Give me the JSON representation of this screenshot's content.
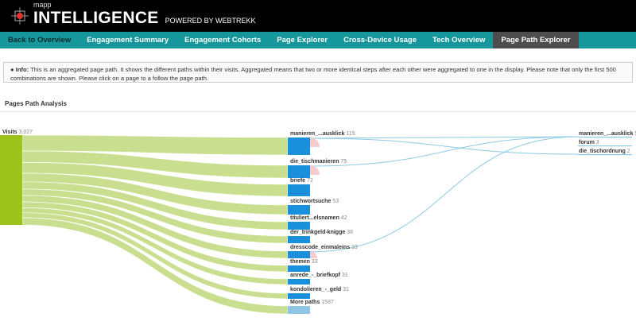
{
  "header": {
    "brand_small": "mapp",
    "brand": "INTELLIGENCE",
    "powered": "POWERED BY WEBTREKK"
  },
  "nav": {
    "tabs": [
      {
        "label": "Back to Overview"
      },
      {
        "label": "Engagement Summary"
      },
      {
        "label": "Engagement Cohorts"
      },
      {
        "label": "Page Explorer"
      },
      {
        "label": "Cross-Device Usage"
      },
      {
        "label": "Tech Overview"
      },
      {
        "label": "Page Path Explorer",
        "active": true
      }
    ]
  },
  "info": {
    "label": "Info:",
    "text": "This is an aggregated page path. It shows the different paths within their visits. Aggregated means that two or more identical steps after each other were aggregated to one in the display. Please note that only the first 500 combinations are shown. Please click on a page to a follow the page path."
  },
  "section_title": "Pages Path Analysis",
  "colors": {
    "source": "#9bc31c",
    "link": "#c9df8f",
    "node": "#1a8fdc",
    "more": "#8fc6e6",
    "exit": "#f3c1c1",
    "flow": "#8ccbe3"
  },
  "chart_data": {
    "type": "sankey",
    "source": {
      "label": "Visits",
      "value": "3,027"
    },
    "step2": [
      {
        "label": "manieren_...ausklick",
        "value": 115,
        "exit": true
      },
      {
        "label": "die_tischmanieren",
        "value": 75,
        "exit": true
      },
      {
        "label": "briefe",
        "value": 72
      },
      {
        "label": "stichwortsuche",
        "value": 53
      },
      {
        "label": "tituliert...elsnamen",
        "value": 42
      },
      {
        "label": "der_trinkgeld-knigge",
        "value": 38
      },
      {
        "label": "dresscode_einmaleins",
        "value": 33,
        "exit": true
      },
      {
        "label": "themen",
        "value": 33
      },
      {
        "label": "anrede_-_briefkopf",
        "value": 31
      },
      {
        "label": "kondolieren_-_geld",
        "value": 31
      },
      {
        "label": "More paths",
        "value": 1587,
        "more": true
      }
    ],
    "step3": [
      {
        "label": "manieren_...ausklick",
        "value": 5
      },
      {
        "label": "forum",
        "value": 3
      },
      {
        "label": "die_tischordnung",
        "value": 2
      }
    ],
    "flows": [
      [
        0,
        0
      ],
      [
        0,
        2
      ],
      [
        1,
        0
      ],
      [
        6,
        0
      ]
    ]
  }
}
